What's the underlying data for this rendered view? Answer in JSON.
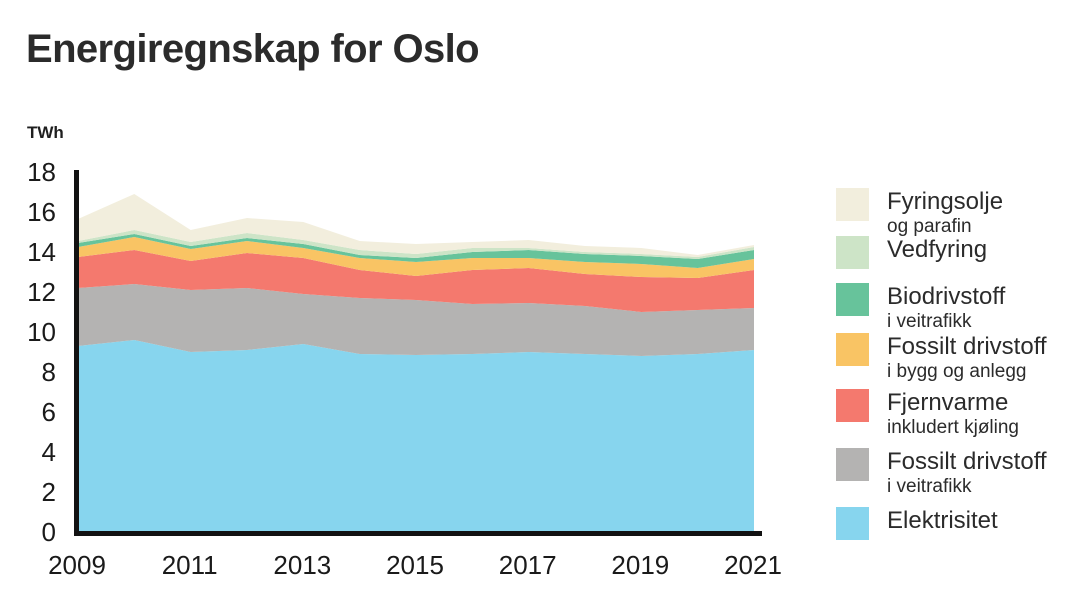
{
  "title": "Energiregnskap for Oslo",
  "y_axis": {
    "unit": "TWh",
    "ticks": [
      0,
      2,
      4,
      6,
      8,
      10,
      12,
      14,
      16,
      18
    ],
    "min": 0,
    "max": 18
  },
  "x_axis": {
    "tick_labels": [
      "2009",
      "2011",
      "2013",
      "2015",
      "2017",
      "2019",
      "2021"
    ]
  },
  "legend": {
    "position": "right",
    "items": [
      {
        "id": "fyringsolje",
        "label": "Fyringsolje",
        "sublabel": "og parafin",
        "color": "#f2eedd"
      },
      {
        "id": "vedfyring",
        "label": "Vedfyring",
        "sublabel": "",
        "color": "#cde4c7"
      },
      {
        "id": "biodrivstoff",
        "label": "Biodrivstoff",
        "sublabel": "i veitrafikk",
        "color": "#67c39b"
      },
      {
        "id": "fossilt-drivstoff-bygg",
        "label": "Fossilt drivstoff",
        "sublabel": "i bygg og anlegg",
        "color": "#f9c464"
      },
      {
        "id": "fjernvarme",
        "label": "Fjernvarme",
        "sublabel": "inkludert kjøling",
        "color": "#f4796e"
      },
      {
        "id": "fossilt-drivstoff-vei",
        "label": "Fossilt drivstoff",
        "sublabel": "i veitrafikk",
        "color": "#b4b3b2"
      },
      {
        "id": "elektrisitet",
        "label": "Elektrisitet",
        "sublabel": "",
        "color": "#87d5ee"
      }
    ]
  },
  "chart_data": {
    "type": "area",
    "stacked": true,
    "title": "Energiregnskap for Oslo",
    "xlabel": "",
    "ylabel": "TWh",
    "ylim": [
      0,
      18
    ],
    "grid": false,
    "legend_position": "right",
    "x": [
      2009,
      2010,
      2011,
      2012,
      2013,
      2014,
      2015,
      2016,
      2017,
      2018,
      2019,
      2020,
      2021
    ],
    "series_order": "bottom-to-top",
    "series": [
      {
        "id": "elektrisitet",
        "name": "Elektrisitet",
        "color": "#87d5ee",
        "values": [
          9.3,
          9.6,
          9.0,
          9.1,
          9.4,
          8.9,
          8.85,
          8.9,
          9.0,
          8.9,
          8.8,
          8.9,
          9.1
        ]
      },
      {
        "id": "fossilt-drivstoff-vei",
        "name": "Fossilt drivstoff i veitrafikk",
        "color": "#b4b3b2",
        "values": [
          2.9,
          2.8,
          3.1,
          3.1,
          2.5,
          2.8,
          2.75,
          2.5,
          2.45,
          2.4,
          2.2,
          2.2,
          2.1
        ]
      },
      {
        "id": "fjernvarme",
        "name": "Fjernvarme inkludert kjøling",
        "color": "#f4796e",
        "values": [
          1.55,
          1.7,
          1.45,
          1.75,
          1.8,
          1.4,
          1.2,
          1.7,
          1.75,
          1.6,
          1.75,
          1.6,
          1.9
        ]
      },
      {
        "id": "fossilt-drivstoff-bygg",
        "name": "Fossilt drivstoff i bygg og anlegg",
        "color": "#f9c464",
        "values": [
          0.5,
          0.65,
          0.6,
          0.6,
          0.5,
          0.6,
          0.7,
          0.6,
          0.5,
          0.6,
          0.65,
          0.5,
          0.55
        ]
      },
      {
        "id": "biodrivstoff",
        "name": "Biodrivstoff i veitrafikk",
        "color": "#67c39b",
        "values": [
          0.2,
          0.15,
          0.15,
          0.15,
          0.2,
          0.15,
          0.2,
          0.3,
          0.4,
          0.4,
          0.4,
          0.45,
          0.45
        ]
      },
      {
        "id": "vedfyring",
        "name": "Vedfyring",
        "color": "#cde4c7",
        "values": [
          0.1,
          0.2,
          0.2,
          0.25,
          0.2,
          0.25,
          0.2,
          0.2,
          0.1,
          0.1,
          0.1,
          0.1,
          0.15
        ]
      },
      {
        "id": "fyringsolje",
        "name": "Fyringsolje og parafin",
        "color": "#f2eedd",
        "values": [
          1.1,
          1.8,
          0.6,
          0.75,
          0.9,
          0.45,
          0.5,
          0.3,
          0.4,
          0.3,
          0.3,
          0.1,
          0.1
        ]
      }
    ]
  }
}
